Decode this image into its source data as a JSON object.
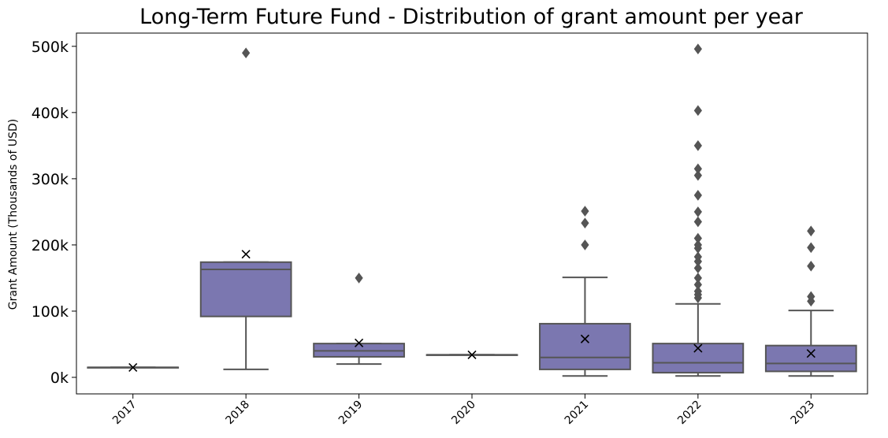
{
  "chart_data": {
    "type": "box",
    "title": "Long-Term Future Fund - Distribution of grant amount per year",
    "xlabel": "",
    "ylabel": "Grant Amount (Thousands of USD)",
    "ylim": [
      -25000,
      520000
    ],
    "yticks": [
      0,
      100000,
      200000,
      300000,
      400000,
      500000
    ],
    "ytick_labels": [
      "0k",
      "100k",
      "200k",
      "300k",
      "400k",
      "500k"
    ],
    "box_color": "#7b77b0",
    "line_color": "#555555",
    "categories": [
      "2017",
      "2018",
      "2019",
      "2020",
      "2021",
      "2022",
      "2023"
    ],
    "boxes": [
      {
        "category": "2017",
        "whisker_low": 15000,
        "q1": 15000,
        "median": 15000,
        "q3": 15000,
        "whisker_high": 15000,
        "mean": 15000,
        "outliers": []
      },
      {
        "category": "2018",
        "whisker_low": 12000,
        "q1": 92000,
        "median": 163000,
        "q3": 174000,
        "whisker_high": 174000,
        "mean": 186000,
        "outliers": [
          490000
        ]
      },
      {
        "category": "2019",
        "whisker_low": 20000,
        "q1": 31000,
        "median": 40000,
        "q3": 51000,
        "whisker_high": 51000,
        "mean": 52000,
        "outliers": [
          150000
        ]
      },
      {
        "category": "2020",
        "whisker_low": 34000,
        "q1": 34000,
        "median": 34000,
        "q3": 34000,
        "whisker_high": 34000,
        "mean": 34000,
        "outliers": []
      },
      {
        "category": "2021",
        "whisker_low": 2000,
        "q1": 12000,
        "median": 30000,
        "q3": 81000,
        "whisker_high": 151000,
        "mean": 58000,
        "outliers": [
          200000,
          233000,
          251000
        ]
      },
      {
        "category": "2022",
        "whisker_low": 2000,
        "q1": 7000,
        "median": 22000,
        "q3": 51000,
        "whisker_high": 111000,
        "mean": 44000,
        "outliers": [
          120000,
          125000,
          130000,
          140000,
          150000,
          165000,
          175000,
          182000,
          195000,
          200000,
          210000,
          235000,
          250000,
          275000,
          305000,
          315000,
          350000,
          403000,
          496000
        ]
      },
      {
        "category": "2023",
        "whisker_low": 2000,
        "q1": 9000,
        "median": 21000,
        "q3": 48000,
        "whisker_high": 101000,
        "mean": 36000,
        "outliers": [
          115000,
          122000,
          168000,
          196000,
          221000
        ]
      }
    ]
  }
}
